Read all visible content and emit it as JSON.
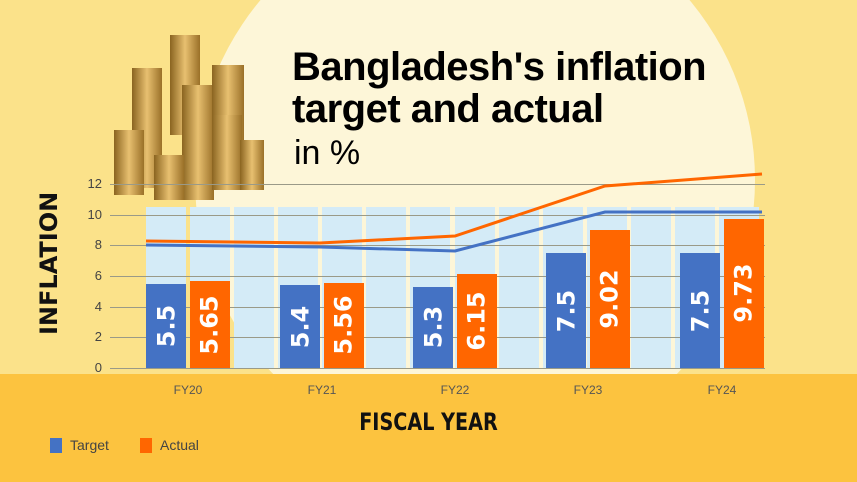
{
  "title": "Bangladesh's inflation target and actual",
  "subtitle": "in %",
  "colors": {
    "target": "#4472c4",
    "actual": "#ff6600",
    "band": "#d4ebf7",
    "bottom": "#fcc33f"
  },
  "legend": [
    {
      "label": "Target",
      "color": "#4472c4"
    },
    {
      "label": "Actual",
      "color": "#ff6600"
    }
  ],
  "chart_data": {
    "type": "bar",
    "title": "Bangladesh's inflation target and actual in %",
    "xlabel": "FISCAL YEAR",
    "ylabel": "INFLATION",
    "categories": [
      "FY20",
      "FY21",
      "FY22",
      "FY23",
      "FY24"
    ],
    "series": [
      {
        "name": "Target",
        "values": [
          5.5,
          5.4,
          5.3,
          7.5,
          7.5
        ]
      },
      {
        "name": "Actual",
        "values": [
          5.65,
          5.56,
          6.15,
          9.02,
          9.73
        ]
      }
    ],
    "value_labels": {
      "Target": [
        "5.5",
        "5.4",
        "5.3",
        "7.5",
        "7.5"
      ],
      "Actual": [
        "5.65",
        "5.56",
        "6.15",
        "9.02",
        "9.73"
      ]
    },
    "yticks": [
      0,
      2,
      4,
      6,
      8,
      10,
      12
    ],
    "ylim": [
      0,
      12
    ],
    "grid": true,
    "legend_position": "bottom-left"
  }
}
